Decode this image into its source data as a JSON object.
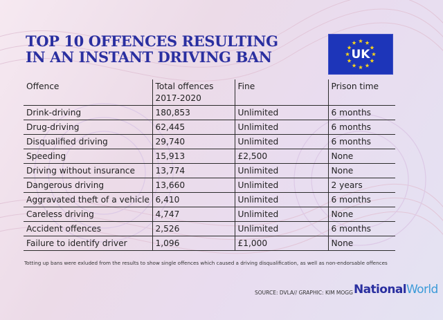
{
  "title": {
    "line1": "TOP 10 OFFENCES RESULTING",
    "line2": "IN AN INSTANT DRIVING BAN"
  },
  "flag": {
    "label": "UK",
    "background": "#1d35b9",
    "star_color": "#f6d31b"
  },
  "table": {
    "headers": {
      "offence": "Offence",
      "total_line1": "Total offences",
      "total_line2": "2017-2020",
      "fine": "Fine",
      "prison": "Prison time"
    },
    "rows": [
      {
        "offence": "Drink-driving",
        "total": "180,853",
        "fine": "Unlimited",
        "prison": "6 months"
      },
      {
        "offence": "Drug-driving",
        "total": "62,445",
        "fine": "Unlimited",
        "prison": "6 months"
      },
      {
        "offence": "Disqualified driving",
        "total": "29,740",
        "fine": "Unlimited",
        "prison": "6 months"
      },
      {
        "offence": "Speeding",
        "total": "15,913",
        "fine": "£2,500",
        "prison": "None"
      },
      {
        "offence": "Driving without insurance",
        "total": "13,774",
        "fine": "Unlimited",
        "prison": "None"
      },
      {
        "offence": "Dangerous driving",
        "total": "13,660",
        "fine": "Unlimited",
        "prison": "2 years"
      },
      {
        "offence": "Aggravated theft of a vehicle",
        "total": "6,410",
        "fine": "Unlimited",
        "prison": "6 months"
      },
      {
        "offence": "Careless driving",
        "total": "4,747",
        "fine": "Unlimited",
        "prison": "None"
      },
      {
        "offence": "Accident offences",
        "total": "2,526",
        "fine": "Unlimited",
        "prison": "6 months"
      },
      {
        "offence": "Failure to identify driver",
        "total": "1,096",
        "fine": "£1,000",
        "prison": "None"
      }
    ]
  },
  "footnote": "Totting up bans were exluded from the results to show single offences which caused a driving disqualification, as well as non-endorsable offences",
  "source": "SOURCE: DVLA// GRAPHIC: KIM MOGG",
  "logo": {
    "part1": "National",
    "part2": "World"
  },
  "colors": {
    "title": "#2a2fa0",
    "logo_world": "#3a9ad8",
    "rules": "#2b2b2b"
  }
}
